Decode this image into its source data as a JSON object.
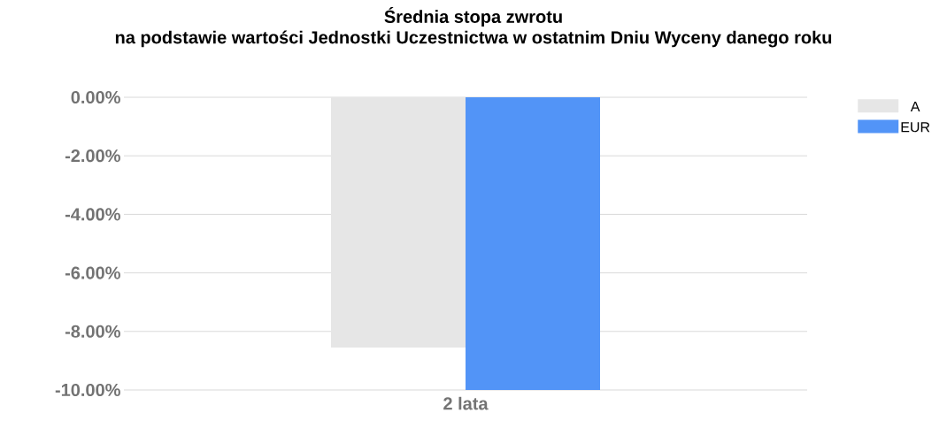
{
  "chart_data": {
    "type": "bar",
    "title": "Średnia stopa zwrotu",
    "subtitle": "na podstawie wartości Jednostki Uczestnictwa w ostatnim Dniu Wyceny danego roku",
    "categories": [
      "2 lata"
    ],
    "series": [
      {
        "name": "A",
        "color": "#e6e6e6",
        "values": [
          -8.55
        ]
      },
      {
        "name": "EUR",
        "color": "#5294f7",
        "values": [
          -10.0
        ]
      }
    ],
    "ylim": [
      -10,
      0
    ],
    "yticks": [
      {
        "value": 0,
        "label": "0.00%"
      },
      {
        "value": -2,
        "label": "-2.00%"
      },
      {
        "value": -4,
        "label": "-4.00%"
      },
      {
        "value": -6,
        "label": "-6.00%"
      },
      {
        "value": -8,
        "label": "-8.00%"
      },
      {
        "value": -10,
        "label": "-10.00%"
      }
    ],
    "grid": "y",
    "legend": "top right"
  }
}
